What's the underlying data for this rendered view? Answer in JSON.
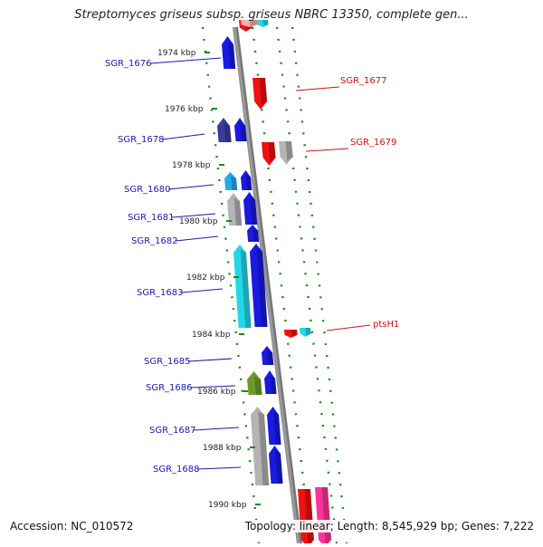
{
  "title": "Streptomyces griseus subsp. griseus NBRC 13350, complete gen...",
  "footer": {
    "accession_label": "Accession:",
    "accession": "NC_010572",
    "topology_label": "Topology:",
    "topology": "linear;",
    "length_label": "Length:",
    "length": "8,545,929 bp;",
    "genes_label": "Genes:",
    "genes": "7,222"
  },
  "ruler": [
    {
      "kbp": 1974,
      "label": "1974 kbp"
    },
    {
      "kbp": 1976,
      "label": "1976 kbp"
    },
    {
      "kbp": 1978,
      "label": "1978 kbp"
    },
    {
      "kbp": 1980,
      "label": "1980 kbp"
    },
    {
      "kbp": 1982,
      "label": "1982 kbp"
    },
    {
      "kbp": 1984,
      "label": "1984 kbp"
    },
    {
      "kbp": 1986,
      "label": "1986 kbp"
    },
    {
      "kbp": 1988,
      "label": "1988 kbp"
    },
    {
      "kbp": 1990,
      "label": "1990 kbp"
    }
  ],
  "gene_labels": [
    {
      "name": "SGR_1676",
      "side": "left",
      "color": "#1a1aaa"
    },
    {
      "name": "SGR_1677",
      "side": "right",
      "color": "#cc1111"
    },
    {
      "name": "SGR_1678",
      "side": "left",
      "color": "#1a1aaa"
    },
    {
      "name": "SGR_1679",
      "side": "right",
      "color": "#cc1111"
    },
    {
      "name": "SGR_1680",
      "side": "left",
      "color": "#1a1aaa"
    },
    {
      "name": "SGR_1681",
      "side": "left",
      "color": "#1a1aaa"
    },
    {
      "name": "SGR_1682",
      "side": "left",
      "color": "#1a1aaa"
    },
    {
      "name": "SGR_1683",
      "side": "left",
      "color": "#1a1aaa"
    },
    {
      "name": "ptsH1",
      "side": "right",
      "color": "#cc1111"
    },
    {
      "name": "SGR_1685",
      "side": "left",
      "color": "#1a1aaa"
    },
    {
      "name": "SGR_1686",
      "side": "left",
      "color": "#1a1aaa"
    },
    {
      "name": "SGR_1687",
      "side": "left",
      "color": "#1a1aaa"
    },
    {
      "name": "SGR_1688",
      "side": "left",
      "color": "#1a1aaa"
    }
  ],
  "colors": {
    "backbone": "#9a9a9a",
    "tick": "#1a8a1a",
    "ruler_text": "#222222",
    "blue": "#1a1ae0",
    "navy": "#3a3a9a",
    "cyan": "#22d8e8",
    "sky": "#22aaee",
    "grey": "#b4b4b4",
    "olive": "#6e9a2a",
    "red": "#ee1111",
    "pink": "#ff3399",
    "pale_red": "#f4b0b0"
  }
}
